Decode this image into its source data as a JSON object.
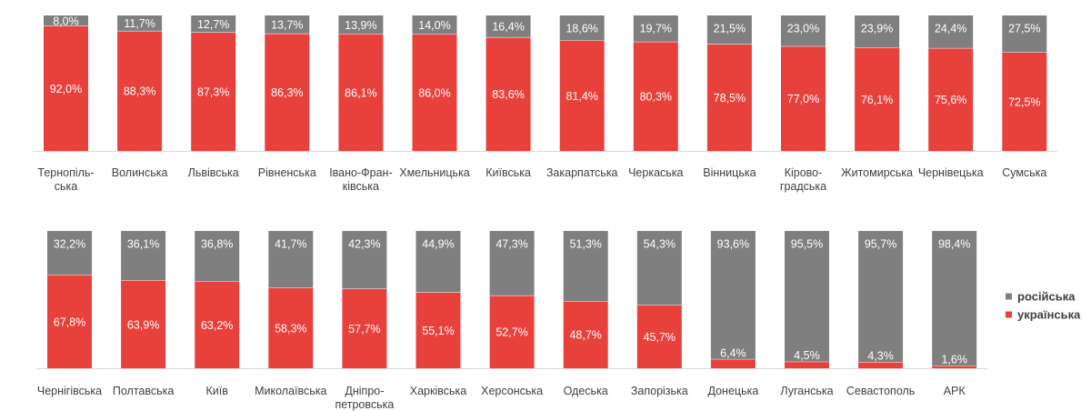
{
  "chart_data": {
    "type": "bar",
    "stacked": true,
    "percent_stacked": true,
    "colors": {
      "russian": "#7f7f7f",
      "ukrainian": "#e8413c"
    },
    "legend": {
      "position": "right",
      "items": [
        {
          "key": "russian",
          "label": "російська"
        },
        {
          "key": "ukrainian",
          "label": "українська"
        }
      ]
    },
    "panels": [
      {
        "categories": [
          [
            "Тернопіль-",
            "ська"
          ],
          [
            "Волинська"
          ],
          [
            "Львівська"
          ],
          [
            "Рівненська"
          ],
          [
            "Івано-Фран-",
            "ківська"
          ],
          [
            "Хмельницька"
          ],
          [
            "Київська"
          ],
          [
            "Закарпатська"
          ],
          [
            "Черкаська"
          ],
          [
            "Вінницька"
          ],
          [
            "Кірово-",
            "градська"
          ],
          [
            "Житомирська"
          ],
          [
            "Чернівецька"
          ],
          [
            "Сумська"
          ]
        ],
        "series": [
          {
            "key": "ukrainian",
            "values": [
              92.0,
              88.3,
              87.3,
              86.3,
              86.1,
              86.0,
              83.6,
              81.4,
              80.3,
              78.5,
              77.0,
              76.1,
              75.6,
              72.5
            ],
            "labels": [
              "92,0%",
              "88,3%",
              "87,3%",
              "86,3%",
              "86,1%",
              "86,0%",
              "83,6%",
              "81,4%",
              "80,3%",
              "78,5%",
              "77,0%",
              "76,1%",
              "75,6%",
              "72,5%"
            ]
          },
          {
            "key": "russian",
            "values": [
              8.0,
              11.7,
              12.7,
              13.7,
              13.9,
              14.0,
              16.4,
              18.6,
              19.7,
              21.5,
              23.0,
              23.9,
              24.4,
              27.5
            ],
            "labels": [
              "8,0%",
              "11,7%",
              "12,7%",
              "13,7%",
              "13,9%",
              "14,0%",
              "16,4%",
              "18,6%",
              "19,7%",
              "21,5%",
              "23,0%",
              "23,9%",
              "24,4%",
              "27,5%"
            ]
          }
        ]
      },
      {
        "categories": [
          [
            "Чернігівська"
          ],
          [
            "Полтавська"
          ],
          [
            "Київ"
          ],
          [
            "Миколаївська"
          ],
          [
            "Дніпро-",
            "петровська"
          ],
          [
            "Харківська"
          ],
          [
            "Херсонська"
          ],
          [
            "Одеська"
          ],
          [
            "Запорізька"
          ],
          [
            "Донецька"
          ],
          [
            "Луганська"
          ],
          [
            "Севастополь"
          ],
          [
            "АРК"
          ]
        ],
        "series": [
          {
            "key": "ukrainian",
            "values": [
              67.8,
              63.9,
              63.2,
              58.3,
              57.7,
              55.1,
              52.7,
              48.7,
              45.7,
              6.4,
              4.5,
              4.3,
              1.6
            ],
            "labels": [
              "67,8%",
              "63,9%",
              "63,2%",
              "58,3%",
              "57,7%",
              "55,1%",
              "52,7%",
              "48,7%",
              "45,7%",
              "6,4%",
              "4,5%",
              "4,3%",
              "1,6%"
            ]
          },
          {
            "key": "russian",
            "values": [
              32.2,
              36.1,
              36.8,
              41.7,
              42.3,
              44.9,
              47.3,
              51.3,
              54.3,
              93.6,
              95.5,
              95.7,
              98.4
            ],
            "labels": [
              "32,2%",
              "36,1%",
              "36,8%",
              "41,7%",
              "42,3%",
              "44,9%",
              "47,3%",
              "51,3%",
              "54,3%",
              "93,6%",
              "95,5%",
              "95,7%",
              "98,4%"
            ]
          }
        ]
      }
    ]
  }
}
